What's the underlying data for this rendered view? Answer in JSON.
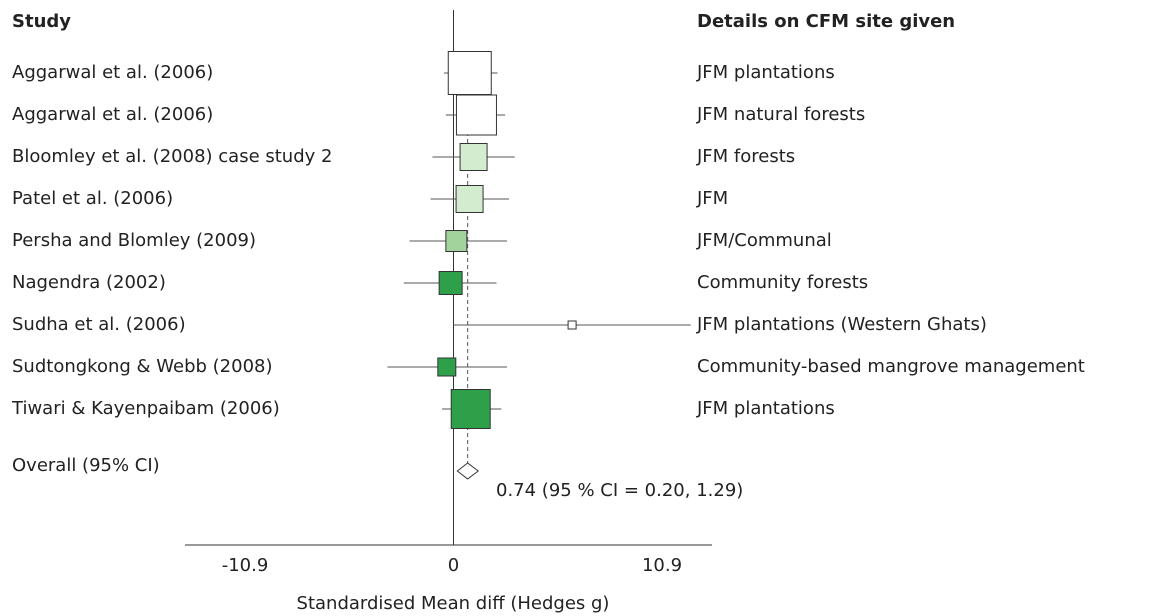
{
  "chart_data": {
    "type": "forest",
    "column_headers": [
      "Study",
      "Details on CFM site given"
    ],
    "categories": [
      "Aggarwal et al. (2006)",
      "Aggarwal et al. (2006)",
      "Bloomley et al. (2008) case study 2",
      "Patel  et al. (2006)",
      "Persha and Blomley (2009)",
      "Nagendra (2002)",
      "Sudha et al. (2006)",
      "Sudtongkong & Webb (2008)",
      "Tiwari & Kayenpaibam (2006)"
    ],
    "details": [
      "JFM plantations",
      "JFM natural forests",
      "JFM forests",
      "JFM",
      "JFM/Communal",
      "Community forests",
      "JFM plantations (Western Ghats)",
      "Community-based mangrove management",
      "JFM plantations"
    ],
    "values": [
      0.85,
      1.2,
      1.05,
      0.84,
      0.15,
      -0.15,
      6.2,
      -0.35,
      0.9
    ],
    "ci_low": [
      -0.5,
      -0.4,
      -1.1,
      -1.2,
      -2.3,
      -2.6,
      0,
      -3.45,
      -0.6
    ],
    "ci_high": [
      2.3,
      2.7,
      3.2,
      2.9,
      2.8,
      2.25,
      12.4,
      2.8,
      2.5
    ],
    "weights": [
      43,
      40,
      27,
      27,
      21,
      23,
      8,
      18,
      39
    ],
    "colors": [
      "#ffffff",
      "#ffffff",
      "#d3ebcf",
      "#d3ebcf",
      "#a3d39c",
      "#2ea04a",
      "#ffffff",
      "#2ea04a",
      "#2ea04a"
    ],
    "overall": {
      "label": "Overall (95% CI)",
      "value": 0.74,
      "ci_low": 0.2,
      "ci_high": 1.29,
      "annotation": "0.74 (95 % CI = 0.20, 1.29)"
    },
    "xlim": [
      -10.9,
      10.9
    ],
    "xticks": [
      -10.9,
      0,
      10.9
    ],
    "x_label": "Standardised Mean diff (Hedges g)"
  }
}
